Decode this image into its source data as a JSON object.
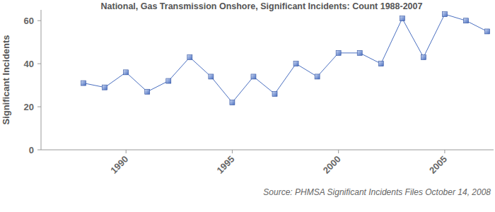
{
  "chart_data": {
    "type": "line",
    "title": "National, Gas Transmission Onshore, Significant Incidents: Count 1988-2007",
    "y_label": "Significant Incidents",
    "source": "Source: PHMSA Significant Incidents Files October 14, 2008",
    "x": [
      1988,
      1989,
      1990,
      1991,
      1992,
      1993,
      1994,
      1995,
      1996,
      1997,
      1998,
      1999,
      2000,
      2001,
      2002,
      2003,
      2004,
      2005,
      2006,
      2007
    ],
    "values": [
      31,
      29,
      36,
      27,
      32,
      43,
      34,
      22,
      34,
      26,
      40,
      34,
      45,
      45,
      40,
      61,
      43,
      63,
      60,
      55
    ],
    "color": "#4a6fc0",
    "marker": "square",
    "xlim": [
      1986,
      2007.3
    ],
    "xticks": [
      1990,
      1995,
      2000,
      2005
    ],
    "ylim": [
      0,
      65
    ],
    "yticks": [
      0,
      20,
      40,
      60
    ],
    "grid": false
  }
}
